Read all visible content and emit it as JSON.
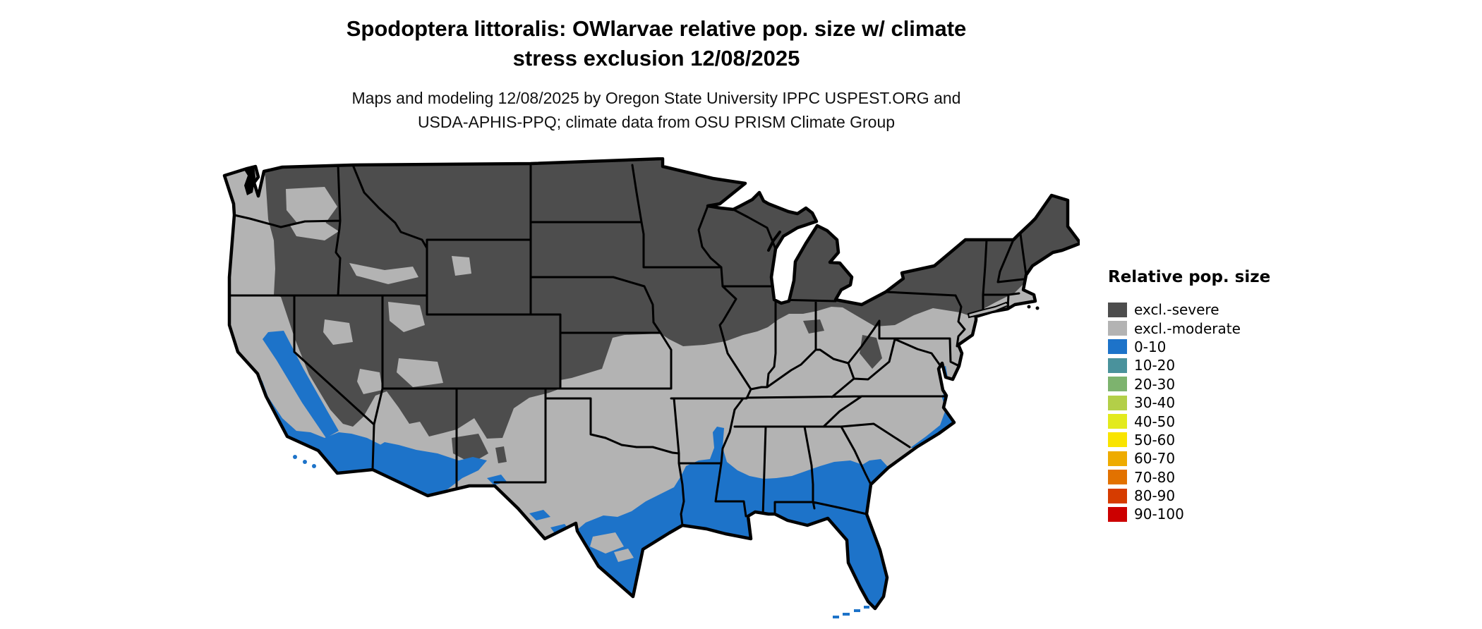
{
  "figure": {
    "title_line1": "Spodoptera littoralis: OWlarvae relative pop. size w/ climate",
    "title_line2": "stress exclusion 12/08/2025",
    "subtitle_line1": "Maps and modeling 12/08/2025 by Oregon State University IPPC USPEST.ORG and",
    "subtitle_line2": "USDA-APHIS-PPQ; climate data from OSU PRISM Climate Group"
  },
  "legend": {
    "title": "Relative pop. size",
    "items": [
      {
        "label": "excl.-severe",
        "color": "#4d4d4d"
      },
      {
        "label": "excl.-moderate",
        "color": "#b3b3b3"
      },
      {
        "label": "0-10",
        "color": "#1d73c9"
      },
      {
        "label": "10-20",
        "color": "#4a929c"
      },
      {
        "label": "20-30",
        "color": "#7db36e"
      },
      {
        "label": "30-40",
        "color": "#b3cf48"
      },
      {
        "label": "40-50",
        "color": "#e3ea1c"
      },
      {
        "label": "50-60",
        "color": "#f9e400"
      },
      {
        "label": "60-70",
        "color": "#eeab00"
      },
      {
        "label": "70-80",
        "color": "#e27200"
      },
      {
        "label": "80-90",
        "color": "#d63c00"
      },
      {
        "label": "90-100",
        "color": "#cc0000"
      }
    ]
  },
  "map": {
    "colors": {
      "excluded_severe": "#4d4d4d",
      "excluded_moderate": "#b3b3b3",
      "pop_0_10": "#1d73c9",
      "state_border": "#000000",
      "water_background": "#ffffff"
    }
  }
}
